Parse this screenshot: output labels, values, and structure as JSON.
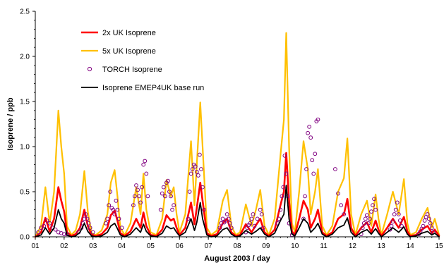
{
  "chart_data": {
    "type": "line",
    "title": "",
    "xlabel": "August 2003 / day",
    "ylabel": "Isoprene / ppb",
    "xlim": [
      1,
      15
    ],
    "ylim": [
      0,
      2.5
    ],
    "x_ticks": [
      "01",
      "02",
      "03",
      "04",
      "05",
      "06",
      "07",
      "08",
      "09",
      "10",
      "11",
      "12",
      "13",
      "14",
      "15"
    ],
    "y_ticks": [
      "0.0",
      "0.5",
      "1.0",
      "1.5",
      "2.0",
      "2.5"
    ],
    "legend_position": "top-left",
    "series": [
      {
        "name": "2x UK Isoprene",
        "color": "#ff0000",
        "style": "line",
        "x": [
          1.0,
          1.2,
          1.35,
          1.5,
          1.65,
          1.8,
          1.9,
          2.0,
          2.1,
          2.25,
          2.4,
          2.55,
          2.7,
          2.82,
          2.95,
          3.1,
          3.3,
          3.5,
          3.62,
          3.75,
          3.85,
          3.95,
          4.1,
          4.3,
          4.5,
          4.65,
          4.75,
          4.85,
          5.0,
          5.2,
          5.4,
          5.55,
          5.7,
          5.8,
          5.9,
          6.0,
          6.2,
          6.4,
          6.52,
          6.6,
          6.72,
          6.8,
          6.95,
          7.1,
          7.3,
          7.5,
          7.65,
          7.8,
          7.95,
          8.1,
          8.3,
          8.5,
          8.65,
          8.8,
          8.95,
          9.1,
          9.3,
          9.5,
          9.62,
          9.7,
          9.8,
          9.9,
          10.0,
          10.15,
          10.3,
          10.45,
          10.55,
          10.7,
          10.8,
          10.95,
          11.1,
          11.3,
          11.5,
          11.7,
          11.82,
          11.95,
          12.1,
          12.3,
          12.5,
          12.65,
          12.8,
          12.9,
          13.0,
          13.2,
          13.4,
          13.6,
          13.78,
          13.9,
          14.0,
          14.2,
          14.4,
          14.6,
          14.75,
          14.85,
          15.0
        ],
        "y": [
          0.0,
          0.05,
          0.21,
          0.06,
          0.2,
          0.55,
          0.4,
          0.28,
          0.05,
          0.01,
          0.03,
          0.1,
          0.3,
          0.12,
          0.02,
          0.01,
          0.03,
          0.1,
          0.24,
          0.29,
          0.18,
          0.04,
          0.01,
          0.06,
          0.2,
          0.1,
          0.27,
          0.12,
          0.02,
          0.01,
          0.08,
          0.24,
          0.18,
          0.2,
          0.1,
          0.02,
          0.1,
          0.38,
          0.14,
          0.32,
          0.6,
          0.4,
          0.04,
          0.01,
          0.03,
          0.15,
          0.2,
          0.05,
          0.01,
          0.02,
          0.14,
          0.05,
          0.13,
          0.2,
          0.05,
          0.01,
          0.08,
          0.35,
          0.5,
          0.93,
          0.4,
          0.06,
          0.02,
          0.2,
          0.4,
          0.3,
          0.1,
          0.2,
          0.3,
          0.05,
          0.01,
          0.05,
          0.2,
          0.25,
          0.42,
          0.1,
          0.01,
          0.1,
          0.16,
          0.05,
          0.18,
          0.08,
          0.01,
          0.1,
          0.2,
          0.1,
          0.22,
          0.06,
          0.01,
          0.02,
          0.08,
          0.12,
          0.04,
          0.08,
          0.01
        ]
      },
      {
        "name": "5x UK Isoprene",
        "color": "#ffc000",
        "style": "line",
        "x": [
          1.0,
          1.2,
          1.35,
          1.5,
          1.65,
          1.8,
          1.9,
          2.0,
          2.1,
          2.25,
          2.4,
          2.55,
          2.7,
          2.82,
          2.95,
          3.1,
          3.3,
          3.5,
          3.62,
          3.75,
          3.85,
          3.95,
          4.1,
          4.3,
          4.5,
          4.65,
          4.75,
          4.85,
          5.0,
          5.2,
          5.4,
          5.55,
          5.7,
          5.8,
          5.9,
          6.0,
          6.2,
          6.4,
          6.52,
          6.6,
          6.72,
          6.8,
          6.95,
          7.1,
          7.3,
          7.5,
          7.65,
          7.8,
          7.95,
          8.1,
          8.3,
          8.5,
          8.65,
          8.8,
          8.95,
          9.1,
          9.3,
          9.5,
          9.62,
          9.7,
          9.8,
          9.9,
          10.0,
          10.15,
          10.3,
          10.45,
          10.55,
          10.7,
          10.8,
          10.95,
          11.1,
          11.3,
          11.5,
          11.7,
          11.82,
          11.95,
          12.1,
          12.3,
          12.5,
          12.65,
          12.8,
          12.9,
          13.0,
          13.2,
          13.4,
          13.6,
          13.78,
          13.9,
          14.0,
          14.2,
          14.4,
          14.6,
          14.75,
          14.85,
          15.0
        ],
        "y": [
          0.0,
          0.12,
          0.55,
          0.15,
          0.5,
          1.4,
          1.0,
          0.7,
          0.12,
          0.02,
          0.07,
          0.25,
          0.73,
          0.28,
          0.04,
          0.02,
          0.07,
          0.25,
          0.6,
          0.74,
          0.45,
          0.1,
          0.02,
          0.15,
          0.55,
          0.25,
          0.7,
          0.3,
          0.05,
          0.02,
          0.2,
          0.63,
          0.45,
          0.55,
          0.25,
          0.05,
          0.25,
          1.06,
          0.35,
          0.8,
          1.49,
          1.0,
          0.1,
          0.02,
          0.07,
          0.4,
          0.52,
          0.12,
          0.02,
          0.05,
          0.36,
          0.12,
          0.3,
          0.52,
          0.12,
          0.02,
          0.2,
          0.9,
          1.3,
          2.26,
          1.0,
          0.15,
          0.05,
          0.5,
          1.06,
          0.75,
          0.25,
          0.5,
          0.75,
          0.12,
          0.02,
          0.12,
          0.5,
          0.65,
          1.09,
          0.25,
          0.02,
          0.25,
          0.4,
          0.12,
          0.47,
          0.2,
          0.02,
          0.25,
          0.5,
          0.25,
          0.64,
          0.15,
          0.02,
          0.05,
          0.2,
          0.32,
          0.1,
          0.2,
          0.02
        ]
      },
      {
        "name": "TORCH Isoprene",
        "color": "#800080",
        "style": "markers",
        "x": [
          1.1,
          1.2,
          1.3,
          1.4,
          1.5,
          1.6,
          1.7,
          1.8,
          1.9,
          2.0,
          2.1,
          2.5,
          2.6,
          2.65,
          2.7,
          2.75,
          2.8,
          2.85,
          2.9,
          3.0,
          3.45,
          3.5,
          3.55,
          3.6,
          3.65,
          3.7,
          3.75,
          3.8,
          3.85,
          3.9,
          4.0,
          4.4,
          4.45,
          4.5,
          4.55,
          4.6,
          4.65,
          4.7,
          4.75,
          4.8,
          4.85,
          4.9,
          5.35,
          5.4,
          5.45,
          5.5,
          5.55,
          5.6,
          5.65,
          5.7,
          5.75,
          5.8,
          6.3,
          6.35,
          6.4,
          6.45,
          6.5,
          6.55,
          6.6,
          6.65,
          6.7,
          6.75,
          6.8,
          6.85,
          7.4,
          7.45,
          7.5,
          7.55,
          7.6,
          7.65,
          7.7,
          7.75,
          7.8,
          8.3,
          8.35,
          8.4,
          8.45,
          8.5,
          8.55,
          8.6,
          8.7,
          8.8,
          8.85,
          8.9,
          9.4,
          9.45,
          9.5,
          9.55,
          9.6,
          9.65,
          9.7,
          9.75,
          9.8,
          9.9,
          10.3,
          10.35,
          10.4,
          10.45,
          10.5,
          10.55,
          10.6,
          10.65,
          10.7,
          10.75,
          10.8,
          11.4,
          11.5,
          11.6,
          11.7,
          12.3,
          12.35,
          12.4,
          12.45,
          12.5,
          12.55,
          12.6,
          12.65,
          12.7,
          12.75,
          12.8,
          13.3,
          13.35,
          13.4,
          13.45,
          13.5,
          13.55,
          13.6,
          13.65,
          13.7,
          14.3,
          14.35,
          14.4,
          14.45,
          14.5,
          14.55,
          14.6,
          14.65,
          14.7,
          14.75,
          14.8
        ],
        "y": [
          0.05,
          0.1,
          0.12,
          0.18,
          0.15,
          0.1,
          0.08,
          0.05,
          0.04,
          0.03,
          0.03,
          0.05,
          0.1,
          0.15,
          0.2,
          0.25,
          0.2,
          0.15,
          0.1,
          0.05,
          0.15,
          0.2,
          0.35,
          0.5,
          0.32,
          0.3,
          0.25,
          0.4,
          0.3,
          0.2,
          0.1,
          0.35,
          0.45,
          0.57,
          0.52,
          0.45,
          0.38,
          0.55,
          0.8,
          0.84,
          0.7,
          0.45,
          0.3,
          0.48,
          0.55,
          0.45,
          0.6,
          0.62,
          0.5,
          0.45,
          0.3,
          0.35,
          0.2,
          0.5,
          0.7,
          0.75,
          0.8,
          0.78,
          0.72,
          0.68,
          0.91,
          0.75,
          0.55,
          0.3,
          0.1,
          0.15,
          0.2,
          0.16,
          0.18,
          0.25,
          0.2,
          0.15,
          0.1,
          0.05,
          0.1,
          0.13,
          0.15,
          0.2,
          0.25,
          0.12,
          0.2,
          0.3,
          0.25,
          0.1,
          0.15,
          0.2,
          0.3,
          0.45,
          0.55,
          0.9,
          0.7,
          0.45,
          0.15,
          0.02,
          0.2,
          0.45,
          0.75,
          1.15,
          1.22,
          1.1,
          0.85,
          0.7,
          0.92,
          1.28,
          1.3,
          0.75,
          0.48,
          0.35,
          0.25,
          0.03,
          0.1,
          0.15,
          0.2,
          0.24,
          0.15,
          0.2,
          0.28,
          0.35,
          0.42,
          0.3,
          0.08,
          0.12,
          0.17,
          0.25,
          0.3,
          0.38,
          0.25,
          0.18,
          0.12,
          0.03,
          0.06,
          0.09,
          0.12,
          0.18,
          0.22,
          0.25,
          0.2,
          0.15,
          0.1,
          0.05
        ]
      },
      {
        "name": "Isoprene EMEP4UK base run",
        "color": "#000000",
        "style": "line",
        "x": [
          1.0,
          1.2,
          1.35,
          1.5,
          1.65,
          1.8,
          1.9,
          2.0,
          2.1,
          2.25,
          2.4,
          2.55,
          2.7,
          2.82,
          2.95,
          3.1,
          3.3,
          3.5,
          3.62,
          3.75,
          3.85,
          3.95,
          4.1,
          4.3,
          4.5,
          4.65,
          4.75,
          4.85,
          5.0,
          5.2,
          5.4,
          5.55,
          5.7,
          5.8,
          5.9,
          6.0,
          6.2,
          6.4,
          6.52,
          6.6,
          6.72,
          6.8,
          6.95,
          7.1,
          7.3,
          7.5,
          7.65,
          7.8,
          7.95,
          8.1,
          8.3,
          8.5,
          8.65,
          8.8,
          8.95,
          9.1,
          9.3,
          9.5,
          9.62,
          9.7,
          9.8,
          9.9,
          10.0,
          10.15,
          10.3,
          10.45,
          10.55,
          10.7,
          10.8,
          10.95,
          11.1,
          11.3,
          11.5,
          11.7,
          11.82,
          11.95,
          12.1,
          12.3,
          12.5,
          12.65,
          12.8,
          12.9,
          13.0,
          13.2,
          13.4,
          13.6,
          13.78,
          13.9,
          14.0,
          14.2,
          14.4,
          14.6,
          14.75,
          14.85,
          15.0
        ],
        "y": [
          0.0,
          0.02,
          0.1,
          0.03,
          0.1,
          0.3,
          0.2,
          0.15,
          0.02,
          0.0,
          0.01,
          0.05,
          0.15,
          0.06,
          0.01,
          0.0,
          0.01,
          0.05,
          0.12,
          0.15,
          0.09,
          0.02,
          0.0,
          0.03,
          0.1,
          0.05,
          0.14,
          0.06,
          0.01,
          0.0,
          0.04,
          0.12,
          0.09,
          0.1,
          0.05,
          0.01,
          0.05,
          0.2,
          0.07,
          0.16,
          0.38,
          0.2,
          0.02,
          0.0,
          0.01,
          0.08,
          0.1,
          0.03,
          0.0,
          0.01,
          0.07,
          0.03,
          0.06,
          0.1,
          0.03,
          0.0,
          0.04,
          0.18,
          0.25,
          0.57,
          0.2,
          0.03,
          0.01,
          0.1,
          0.2,
          0.15,
          0.05,
          0.1,
          0.15,
          0.03,
          0.0,
          0.03,
          0.1,
          0.13,
          0.21,
          0.05,
          0.0,
          0.05,
          0.08,
          0.03,
          0.09,
          0.04,
          0.0,
          0.05,
          0.1,
          0.05,
          0.11,
          0.03,
          0.0,
          0.01,
          0.04,
          0.06,
          0.02,
          0.04,
          0.0
        ]
      }
    ]
  }
}
